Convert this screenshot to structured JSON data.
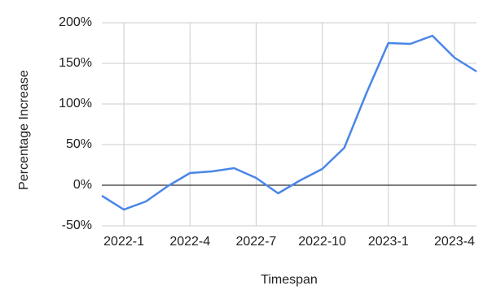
{
  "chart_data": {
    "type": "line",
    "x_label": "Timespan",
    "y_label": "Percentage Increase",
    "categories": [
      null,
      "2022-1",
      null,
      null,
      "2022-4",
      null,
      null,
      "2022-7",
      null,
      null,
      "2022-10",
      null,
      null,
      "2023-1",
      null,
      null,
      "2023-4",
      null
    ],
    "series": [
      {
        "name": "Percentage Increase",
        "color": "#4a86e8",
        "values": [
          -13,
          -30,
          -20,
          -1,
          15,
          17,
          21,
          9,
          -10,
          6,
          20,
          46,
          113,
          175,
          174,
          184,
          157,
          140
        ]
      }
    ],
    "ylim": [
      -50,
      200
    ],
    "yticks": [
      {
        "value": -50,
        "label": "-50%"
      },
      {
        "value": 0,
        "label": "0%"
      },
      {
        "value": 50,
        "label": "50%"
      },
      {
        "value": 100,
        "label": "100%"
      },
      {
        "value": 150,
        "label": "150%"
      },
      {
        "value": 200,
        "label": "200%"
      }
    ],
    "grid": true
  }
}
